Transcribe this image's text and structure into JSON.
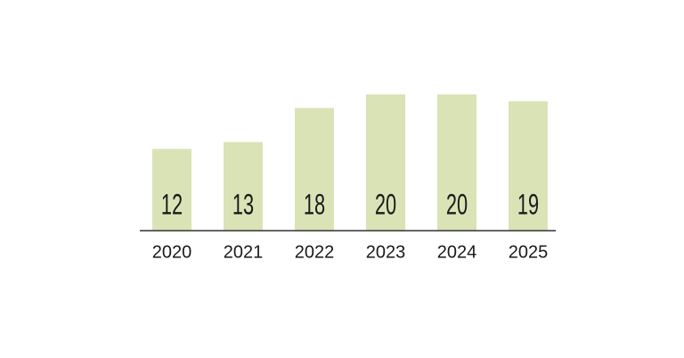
{
  "chart_data": {
    "type": "bar",
    "categories": [
      "2020",
      "2021",
      "2022",
      "2023",
      "2024",
      "2025"
    ],
    "values": [
      12,
      13,
      18,
      20,
      20,
      19
    ],
    "color": "#d9e3b5"
  }
}
